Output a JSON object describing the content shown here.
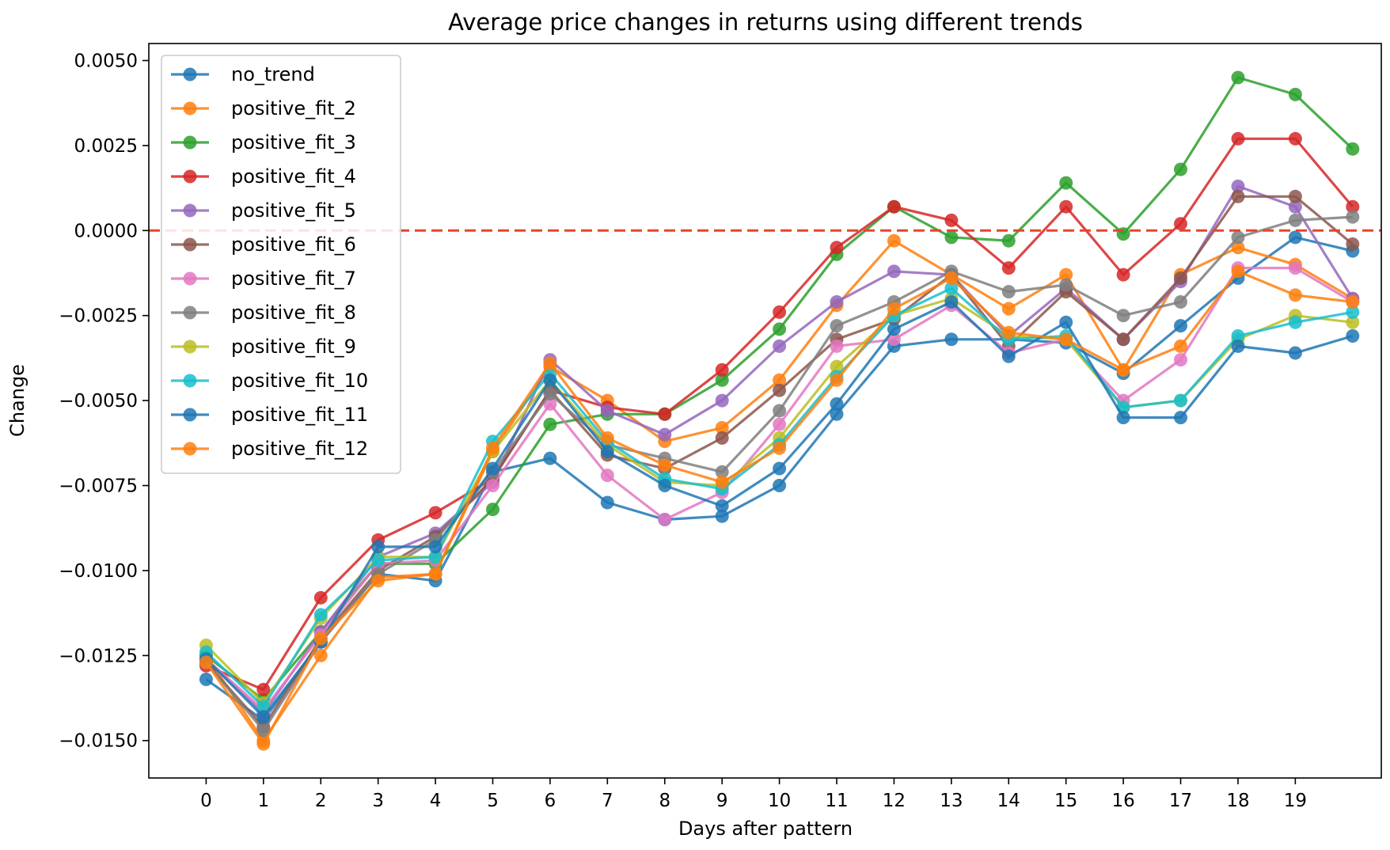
{
  "chart_data": {
    "type": "line",
    "title": "Average price changes in returns using different trends",
    "xlabel": "Days after pattern",
    "ylabel": "Change",
    "x": [
      0,
      1,
      2,
      3,
      4,
      5,
      6,
      7,
      8,
      9,
      10,
      11,
      12,
      13,
      14,
      15,
      16,
      17,
      18,
      19,
      20
    ],
    "xticks": [
      "0",
      "1",
      "2",
      "3",
      "4",
      "5",
      "6",
      "7",
      "8",
      "9",
      "10",
      "11",
      "12",
      "13",
      "14",
      "15",
      "16",
      "17",
      "18",
      "19"
    ],
    "xlim": [
      -1,
      20.5
    ],
    "ylim": [
      -0.0161,
      0.0055
    ],
    "yticks": [
      0.005,
      0.0025,
      0.0,
      -0.0025,
      -0.005,
      -0.0075,
      -0.01,
      -0.0125,
      -0.015
    ],
    "ytick_labels": [
      "0.0050",
      "0.0025",
      "0.0000",
      "−0.0025",
      "−0.0050",
      "−0.0075",
      "−0.0100",
      "−0.0125",
      "−0.0150"
    ],
    "reference_line": {
      "y": 0.0,
      "color": "#e8442b",
      "style": "dashed"
    },
    "legend_position": "upper-left",
    "grid": false,
    "series": [
      {
        "name": "no_trend",
        "color": "#1f77b4",
        "values": [
          -0.0132,
          -0.0144,
          -0.0121,
          -0.0101,
          -0.0103,
          -0.0071,
          -0.0067,
          -0.008,
          -0.0085,
          -0.0084,
          -0.0075,
          -0.0054,
          -0.0034,
          -0.0032,
          -0.0032,
          -0.0033,
          -0.0042,
          -0.0028,
          -0.0014,
          -0.0002,
          -0.0006
        ]
      },
      {
        "name": "positive_fit_2",
        "color": "#ff7f0e",
        "values": [
          -0.0125,
          -0.015,
          -0.0125,
          -0.0102,
          -0.0101,
          -0.0065,
          -0.004,
          -0.005,
          -0.0062,
          -0.0058,
          -0.0044,
          -0.0022,
          -0.0003,
          -0.0013,
          -0.0023,
          -0.0013,
          -0.0041,
          -0.0013,
          -0.0005,
          -0.001,
          -0.002
        ]
      },
      {
        "name": "positive_fit_3",
        "color": "#2ca02c",
        "values": [
          -0.0125,
          -0.0138,
          -0.0118,
          -0.0098,
          -0.0098,
          -0.0082,
          -0.0057,
          -0.0054,
          -0.0054,
          -0.0044,
          -0.0029,
          -0.0007,
          0.0007,
          -0.0002,
          -0.0003,
          0.0014,
          -0.0001,
          0.0018,
          0.0045,
          0.004,
          0.0024
        ]
      },
      {
        "name": "positive_fit_4",
        "color": "#d62728",
        "values": [
          -0.0128,
          -0.0135,
          -0.0108,
          -0.0091,
          -0.0083,
          -0.0073,
          -0.0047,
          -0.0052,
          -0.0054,
          -0.0041,
          -0.0024,
          -0.0005,
          0.0007,
          0.0003,
          -0.0011,
          0.0007,
          -0.0013,
          0.0002,
          0.0027,
          0.0027,
          0.0007
        ]
      },
      {
        "name": "positive_fit_5",
        "color": "#9467bd",
        "values": [
          -0.0126,
          -0.0142,
          -0.0118,
          -0.0096,
          -0.0089,
          -0.0074,
          -0.0038,
          -0.0053,
          -0.006,
          -0.005,
          -0.0034,
          -0.0021,
          -0.0012,
          -0.0013,
          -0.0031,
          -0.0017,
          -0.0032,
          -0.0015,
          0.0013,
          0.0007,
          -0.002
        ]
      },
      {
        "name": "positive_fit_6",
        "color": "#8c564b",
        "values": [
          -0.0127,
          -0.0146,
          -0.012,
          -0.01,
          -0.009,
          -0.0073,
          -0.0047,
          -0.0066,
          -0.007,
          -0.0061,
          -0.0047,
          -0.0032,
          -0.0026,
          -0.0013,
          -0.0034,
          -0.0018,
          -0.0032,
          -0.0014,
          0.001,
          0.001,
          -0.0004
        ]
      },
      {
        "name": "positive_fit_7",
        "color": "#e377c2",
        "values": [
          -0.0126,
          -0.0141,
          -0.0119,
          -0.0098,
          -0.0097,
          -0.0075,
          -0.0051,
          -0.0072,
          -0.0085,
          -0.0077,
          -0.0057,
          -0.0034,
          -0.0032,
          -0.0022,
          -0.0036,
          -0.0032,
          -0.005,
          -0.0038,
          -0.0011,
          -0.0011,
          -0.0021
        ]
      },
      {
        "name": "positive_fit_8",
        "color": "#7f7f7f",
        "values": [
          -0.0127,
          -0.0147,
          -0.0121,
          -0.0101,
          -0.0091,
          -0.0071,
          -0.0048,
          -0.0063,
          -0.0067,
          -0.0071,
          -0.0053,
          -0.0028,
          -0.0021,
          -0.0012,
          -0.0018,
          -0.0016,
          -0.0025,
          -0.0021,
          -0.0002,
          0.0003,
          0.0004
        ]
      },
      {
        "name": "positive_fit_9",
        "color": "#bcbd22",
        "values": [
          -0.0122,
          -0.0139,
          -0.0114,
          -0.0096,
          -0.0096,
          -0.0065,
          -0.0044,
          -0.0063,
          -0.0074,
          -0.0075,
          -0.0061,
          -0.004,
          -0.0025,
          -0.002,
          -0.0031,
          -0.0032,
          -0.0052,
          -0.005,
          -0.0032,
          -0.0025,
          -0.0027
        ]
      },
      {
        "name": "positive_fit_10",
        "color": "#17becf",
        "values": [
          -0.0124,
          -0.014,
          -0.0113,
          -0.0097,
          -0.0096,
          -0.0062,
          -0.0042,
          -0.0062,
          -0.0073,
          -0.0076,
          -0.0063,
          -0.0043,
          -0.0025,
          -0.0017,
          -0.0032,
          -0.0031,
          -0.0052,
          -0.005,
          -0.0031,
          -0.0027,
          -0.0024
        ]
      },
      {
        "name": "positive_fit_11",
        "color": "#1f77b4",
        "values": [
          -0.0126,
          -0.0143,
          -0.0121,
          -0.0093,
          -0.0093,
          -0.007,
          -0.0044,
          -0.0065,
          -0.0075,
          -0.0081,
          -0.007,
          -0.0051,
          -0.0029,
          -0.0021,
          -0.0037,
          -0.0027,
          -0.0055,
          -0.0055,
          -0.0034,
          -0.0036,
          -0.0031
        ]
      },
      {
        "name": "positive_fit_12",
        "color": "#ff7f0e",
        "values": [
          -0.0127,
          -0.0151,
          -0.012,
          -0.0103,
          -0.0101,
          -0.0064,
          -0.0039,
          -0.0061,
          -0.0069,
          -0.0074,
          -0.0064,
          -0.0044,
          -0.0023,
          -0.0014,
          -0.003,
          -0.0032,
          -0.0041,
          -0.0034,
          -0.0012,
          -0.0019,
          -0.0021
        ]
      }
    ]
  }
}
